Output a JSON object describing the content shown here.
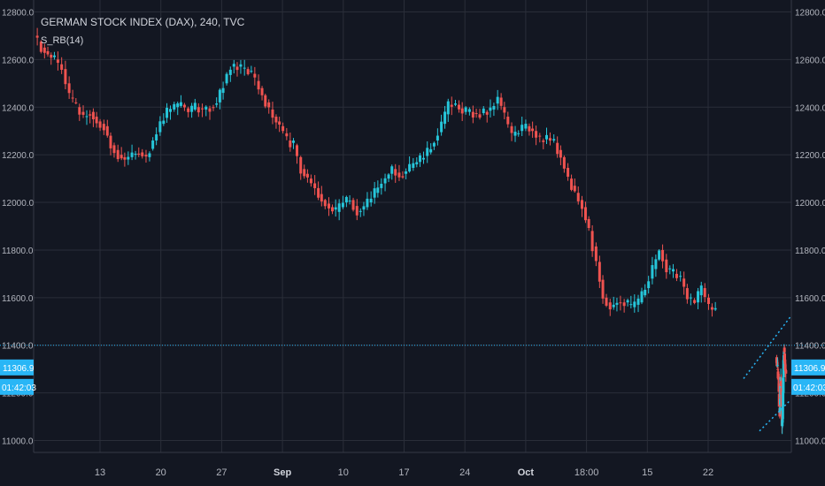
{
  "chart_data": {
    "type": "candlestick",
    "title": "GERMAN STOCK INDEX (DAX), 240, TVC",
    "indicator": "S_RB(14)",
    "ylim": [
      10950,
      12850
    ],
    "y_ticks": [
      "11000.0",
      "11200.0",
      "11400.0",
      "11600.0",
      "11800.0",
      "12000.0",
      "12200.0",
      "12400.0",
      "12600.0",
      "12800.0"
    ],
    "x_ticks": [
      "13",
      "20",
      "27",
      "Sep",
      "10",
      "17",
      "24",
      "Oct",
      "18:00",
      "15",
      "22"
    ],
    "x_ticks_bold": [
      "Sep",
      "Oct"
    ],
    "hline_value": 11400,
    "last_price_label": "11306.9",
    "countdown_label": "01:42:03",
    "colors": {
      "up": "#26c6da",
      "down": "#ef5350",
      "grid": "#2a2e39",
      "hline": "#29b6f6",
      "text": "#b2b5be",
      "bg": "#131722"
    },
    "path_points": [
      [
        0,
        12700
      ],
      [
        8,
        12650
      ],
      [
        15,
        12620
      ],
      [
        22,
        12600
      ],
      [
        30,
        12560
      ],
      [
        38,
        12440
      ],
      [
        45,
        12400
      ],
      [
        53,
        12360
      ],
      [
        60,
        12380
      ],
      [
        67,
        12340
      ],
      [
        75,
        12320
      ],
      [
        82,
        12240
      ],
      [
        90,
        12200
      ],
      [
        97,
        12180
      ],
      [
        105,
        12200
      ],
      [
        112,
        12210
      ],
      [
        120,
        12190
      ],
      [
        127,
        12260
      ],
      [
        135,
        12330
      ],
      [
        142,
        12380
      ],
      [
        150,
        12400
      ],
      [
        157,
        12410
      ],
      [
        165,
        12380
      ],
      [
        172,
        12400
      ],
      [
        180,
        12390
      ],
      [
        188,
        12400
      ],
      [
        195,
        12420
      ],
      [
        202,
        12500
      ],
      [
        210,
        12570
      ],
      [
        217,
        12570
      ],
      [
        225,
        12560
      ],
      [
        232,
        12540
      ],
      [
        240,
        12480
      ],
      [
        247,
        12420
      ],
      [
        255,
        12360
      ],
      [
        262,
        12320
      ],
      [
        270,
        12260
      ],
      [
        277,
        12240
      ],
      [
        285,
        12140
      ],
      [
        292,
        12100
      ],
      [
        300,
        12060
      ],
      [
        307,
        12010
      ],
      [
        315,
        11980
      ],
      [
        322,
        11960
      ],
      [
        330,
        12000
      ],
      [
        337,
        12010
      ],
      [
        345,
        11960
      ],
      [
        352,
        11980
      ],
      [
        360,
        12020
      ],
      [
        367,
        12060
      ],
      [
        375,
        12100
      ],
      [
        382,
        12140
      ],
      [
        390,
        12110
      ],
      [
        397,
        12130
      ],
      [
        405,
        12160
      ],
      [
        412,
        12180
      ],
      [
        420,
        12210
      ],
      [
        427,
        12260
      ],
      [
        435,
        12330
      ],
      [
        442,
        12410
      ],
      [
        450,
        12410
      ],
      [
        457,
        12380
      ],
      [
        465,
        12380
      ],
      [
        472,
        12370
      ],
      [
        480,
        12380
      ],
      [
        487,
        12390
      ],
      [
        495,
        12440
      ],
      [
        502,
        12360
      ],
      [
        510,
        12280
      ],
      [
        517,
        12300
      ],
      [
        525,
        12320
      ],
      [
        532,
        12300
      ],
      [
        540,
        12260
      ],
      [
        547,
        12270
      ],
      [
        555,
        12250
      ],
      [
        562,
        12190
      ],
      [
        570,
        12100
      ],
      [
        577,
        12040
      ],
      [
        585,
        11980
      ],
      [
        592,
        11880
      ],
      [
        600,
        11750
      ],
      [
        607,
        11600
      ],
      [
        615,
        11560
      ],
      [
        622,
        11580
      ],
      [
        630,
        11580
      ],
      [
        637,
        11560
      ],
      [
        645,
        11580
      ],
      [
        652,
        11640
      ],
      [
        660,
        11720
      ],
      [
        667,
        11800
      ],
      [
        675,
        11720
      ],
      [
        682,
        11700
      ],
      [
        690,
        11680
      ],
      [
        697,
        11600
      ],
      [
        705,
        11580
      ],
      [
        712,
        11640
      ],
      [
        720,
        11560
      ],
      [
        727,
        11540
      ]
    ],
    "path_points_2": [
      [
        730,
        11350
      ],
      [
        737,
        11330
      ],
      [
        744,
        11300
      ],
      [
        751,
        11280
      ],
      [
        758,
        11240
      ],
      [
        765,
        11150
      ],
      [
        772,
        11120
      ],
      [
        779,
        11180
      ],
      [
        786,
        11250
      ],
      [
        793,
        11190
      ],
      [
        800,
        11060
      ],
      [
        807,
        11090
      ],
      [
        814,
        11200
      ],
      [
        821,
        11330
      ],
      [
        828,
        11390
      ],
      [
        835,
        11340
      ],
      [
        842,
        11300
      ],
      [
        850,
        11290
      ]
    ]
  }
}
